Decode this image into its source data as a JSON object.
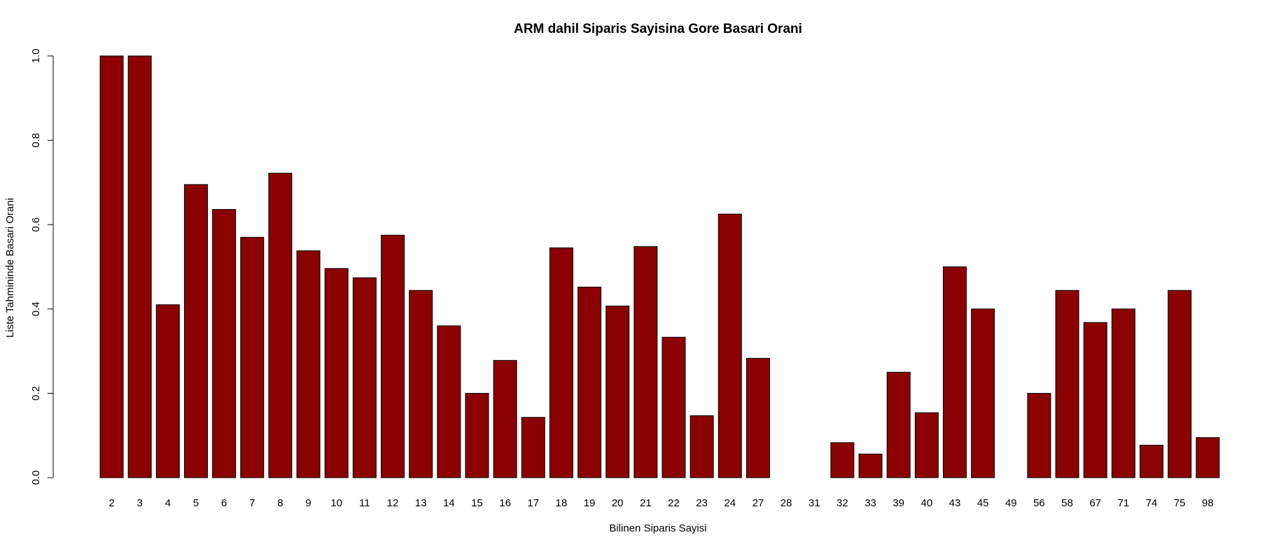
{
  "chart_data": {
    "type": "bar",
    "title": "ARM dahil Siparis Sayisina Gore Basari Orani",
    "xlabel": "Bilinen Siparis Sayisi",
    "ylabel": "Liste Tahmininde Basari Orani",
    "ylim": [
      0,
      1
    ],
    "yticks": [
      "0.0",
      "0.2",
      "0.4",
      "0.6",
      "0.8",
      "1.0"
    ],
    "categories": [
      "2",
      "3",
      "4",
      "5",
      "6",
      "7",
      "8",
      "9",
      "10",
      "11",
      "12",
      "13",
      "14",
      "15",
      "16",
      "17",
      "18",
      "19",
      "20",
      "21",
      "22",
      "23",
      "24",
      "27",
      "28",
      "31",
      "32",
      "33",
      "39",
      "40",
      "43",
      "45",
      "49",
      "56",
      "58",
      "67",
      "71",
      "74",
      "75",
      "98"
    ],
    "values": [
      1.0,
      1.0,
      0.41,
      0.695,
      0.636,
      0.57,
      0.722,
      0.538,
      0.496,
      0.474,
      0.575,
      0.444,
      0.36,
      0.2,
      0.278,
      0.143,
      0.545,
      0.452,
      0.407,
      0.548,
      0.333,
      0.147,
      0.625,
      0.283,
      0.0,
      0.0,
      0.083,
      0.056,
      0.25,
      0.154,
      0.5,
      0.4,
      0.0,
      0.2,
      0.444,
      0.368,
      0.4,
      0.077,
      0.444,
      0.095
    ],
    "bar_color": "#8b0000",
    "grid": false
  }
}
